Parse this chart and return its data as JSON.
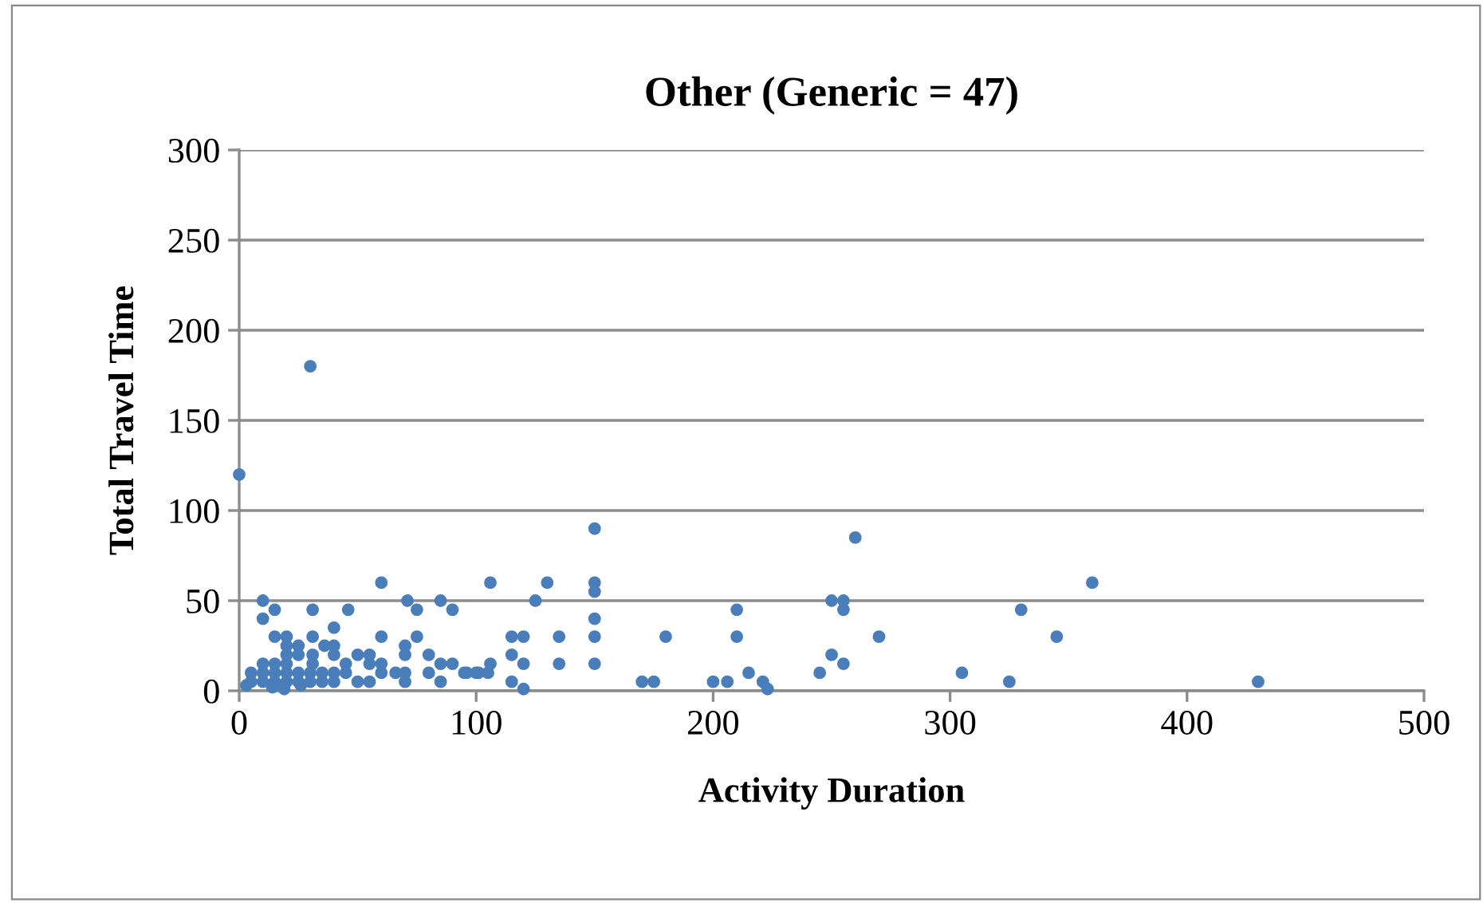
{
  "chart_data": {
    "type": "scatter",
    "title": "Other (Generic = 47)",
    "xlabel": "Activity Duration",
    "ylabel": "Total Travel Time",
    "x": [
      0,
      30,
      10,
      10,
      15,
      31,
      46,
      40,
      60,
      60,
      71,
      75,
      85,
      90,
      75,
      70,
      70,
      15,
      20,
      20,
      20,
      20,
      25,
      25,
      31,
      31,
      31,
      36,
      40,
      40,
      50,
      55,
      60,
      55,
      45,
      80,
      85,
      90,
      95,
      100,
      66,
      70,
      70,
      80,
      85,
      60,
      50,
      55,
      45,
      40,
      40,
      35,
      35,
      30,
      30,
      25,
      26,
      20,
      20,
      15,
      15,
      15,
      14,
      10,
      10,
      10,
      5,
      5,
      3,
      19,
      25,
      150,
      106,
      130,
      150,
      150,
      125,
      150,
      115,
      120,
      135,
      150,
      180,
      115,
      106,
      120,
      135,
      150,
      105,
      101,
      96,
      115,
      120,
      170,
      175,
      200,
      206,
      210,
      210,
      215,
      221,
      223,
      245,
      250,
      255,
      255,
      250,
      255,
      260,
      270,
      305,
      325,
      330,
      345,
      360,
      430
    ],
    "values": [
      120,
      180,
      50,
      40,
      45,
      45,
      45,
      35,
      60,
      30,
      50,
      45,
      50,
      45,
      30,
      25,
      20,
      30,
      30,
      25,
      20,
      15,
      25,
      20,
      30,
      20,
      15,
      25,
      25,
      20,
      20,
      20,
      15,
      15,
      15,
      20,
      15,
      15,
      10,
      10,
      10,
      10,
      5,
      10,
      5,
      10,
      5,
      5,
      10,
      10,
      5,
      10,
      5,
      10,
      5,
      5,
      3,
      10,
      5,
      15,
      10,
      5,
      2,
      15,
      10,
      5,
      10,
      5,
      3,
      1,
      10,
      90,
      60,
      60,
      60,
      55,
      50,
      40,
      30,
      30,
      30,
      30,
      30,
      20,
      15,
      15,
      15,
      15,
      10,
      10,
      10,
      5,
      1,
      5,
      5,
      5,
      5,
      45,
      30,
      10,
      5,
      1,
      10,
      50,
      50,
      45,
      20,
      15,
      85,
      30,
      10,
      5,
      45,
      30,
      60,
      5
    ],
    "color": "#4a7ebb",
    "marker": "circle",
    "xlim": [
      0,
      500
    ],
    "ylim": [
      0,
      300
    ],
    "xticks": [
      0,
      100,
      200,
      300,
      400,
      500
    ],
    "yticks": [
      0,
      50,
      100,
      150,
      200,
      250,
      300
    ],
    "grid": "y",
    "legend": false
  }
}
